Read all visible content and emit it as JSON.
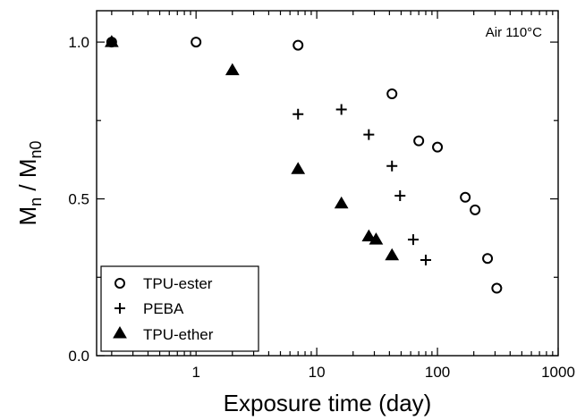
{
  "chart_data": {
    "type": "scatter",
    "annotation": "Air 110°C",
    "xlabel": "Exposure time (day)",
    "ylabel": {
      "main": "M",
      "sub1": "n",
      "mid": " / M",
      "sub2": "n0"
    },
    "xscale": "log",
    "xlim": [
      0.15,
      1000
    ],
    "ylim": [
      0.0,
      1.1
    ],
    "x_ticks": [
      1,
      10,
      100,
      1000
    ],
    "y_ticks": [
      0.0,
      0.5,
      1.0
    ],
    "x_tick_labels": [
      "1",
      "10",
      "100",
      "1000"
    ],
    "y_tick_labels": [
      "0.0",
      "0.5",
      "1.0"
    ],
    "grid": false,
    "legend_position": "bottom-left",
    "series": [
      {
        "name": "TPU-ester",
        "marker": "open-circle",
        "points": [
          [
            0.2,
            1.0
          ],
          [
            1,
            1.0
          ],
          [
            7,
            0.99
          ],
          [
            42,
            0.835
          ],
          [
            70,
            0.685
          ],
          [
            100,
            0.665
          ],
          [
            170,
            0.505
          ],
          [
            205,
            0.465
          ],
          [
            260,
            0.31
          ],
          [
            310,
            0.215
          ]
        ]
      },
      {
        "name": "PEBA",
        "marker": "plus",
        "points": [
          [
            7,
            0.77
          ],
          [
            16,
            0.785
          ],
          [
            27,
            0.705
          ],
          [
            42,
            0.605
          ],
          [
            49,
            0.51
          ],
          [
            63,
            0.37
          ],
          [
            80,
            0.305
          ]
        ]
      },
      {
        "name": "TPU-ether",
        "marker": "filled-triangle",
        "points": [
          [
            0.2,
            1.0
          ],
          [
            2,
            0.91
          ],
          [
            7,
            0.595
          ],
          [
            16,
            0.485
          ],
          [
            27,
            0.38
          ],
          [
            31,
            0.37
          ],
          [
            42,
            0.32
          ]
        ]
      }
    ]
  }
}
